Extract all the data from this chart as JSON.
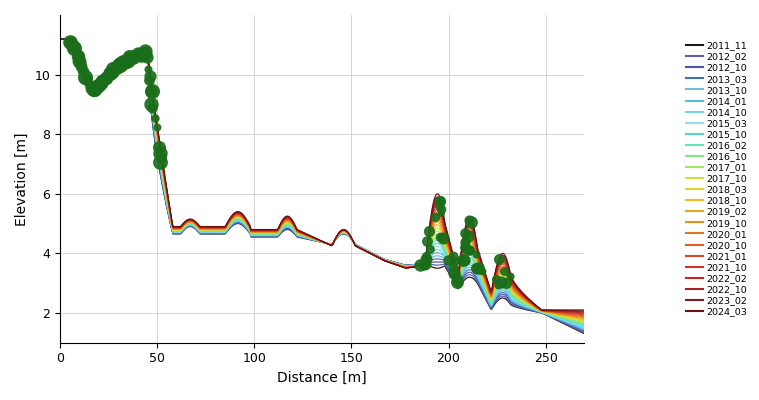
{
  "timestamps": [
    "2011_11",
    "2012_02",
    "2012_10",
    "2013_03",
    "2013_10",
    "2014_01",
    "2014_10",
    "2015_03",
    "2015_10",
    "2016_02",
    "2016_10",
    "2017_01",
    "2017_10",
    "2018_03",
    "2018_10",
    "2019_02",
    "2019_10",
    "2020_01",
    "2020_10",
    "2021_01",
    "2021_10",
    "2022_02",
    "2022_10",
    "2023_02",
    "2024_03"
  ],
  "colors": [
    "#1a1a1a",
    "#6060a0",
    "#5050b8",
    "#4070c0",
    "#70b8d8",
    "#50c0e0",
    "#70d8e8",
    "#90e0f0",
    "#50d8d0",
    "#60e8b0",
    "#80e880",
    "#a0e860",
    "#c8e040",
    "#e0d830",
    "#e8c020",
    "#e8a818",
    "#e89018",
    "#e07820",
    "#e06028",
    "#d84828",
    "#cc3828",
    "#c02828",
    "#a82020",
    "#881818",
    "#6a1010"
  ],
  "veg_timestamps": [
    "2016_02",
    "2017_01",
    "2018_03",
    "2019_02",
    "2020_01",
    "2022_02",
    "2023_02"
  ],
  "xlabel": "Distance [m]",
  "ylabel": "Elevation [m]",
  "xlim": [
    0,
    270
  ],
  "ylim": [
    1.0,
    12.0
  ],
  "yticks": [
    2,
    4,
    6,
    8,
    10
  ],
  "xticks": [
    0,
    50,
    100,
    150,
    200,
    250
  ]
}
